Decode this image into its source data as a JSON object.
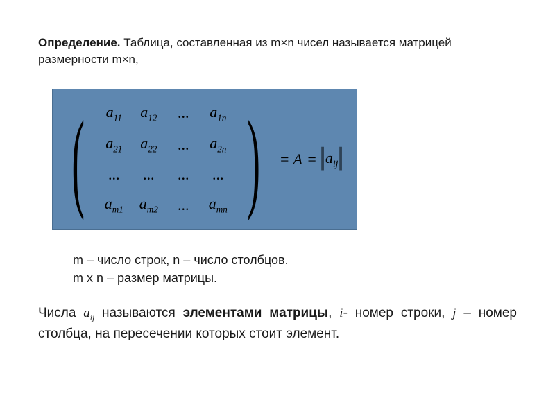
{
  "header": {
    "label": "Определение.",
    "text": " Таблица, составленная из m×n чисел называется матрицей размерности m×n,"
  },
  "matrix": {
    "cells": [
      [
        "a|11",
        "a|12",
        "...",
        "a|1n"
      ],
      [
        "a|21",
        "a|22",
        "...",
        "a|2n"
      ],
      [
        "...",
        "...",
        "...",
        "..."
      ],
      [
        "a|m1",
        "a|m2",
        "...",
        "a|mn"
      ]
    ],
    "eq1": "= A",
    "eq2": "=",
    "norm_var": "a",
    "norm_sub": "ij"
  },
  "mid": {
    "line1": "m – число строк, n – число столбцов.",
    "line2": "m x n – размер матрицы."
  },
  "bottom": {
    "t1": "Числа ",
    "var": "a",
    "sub": "ij",
    "t2": " называются ",
    "bold": "элементами матрицы",
    "t3": ",  ",
    "ivar": "i",
    "t4": "- номер строки, ",
    "jvar": "j",
    "t5": " – номер столбца, на пересечении которых стоит элемент."
  },
  "style": {
    "box_bg": "#5e87b0",
    "box_border": "#4a6e91",
    "page_bg": "#ffffff",
    "text_color": "#1a1a1a",
    "matrix_font": "Times New Roman",
    "body_font": "Verdana",
    "title_fontsize": 17,
    "mid_fontsize": 18,
    "bottom_fontsize": 19,
    "matrix_fontsize": 22
  }
}
